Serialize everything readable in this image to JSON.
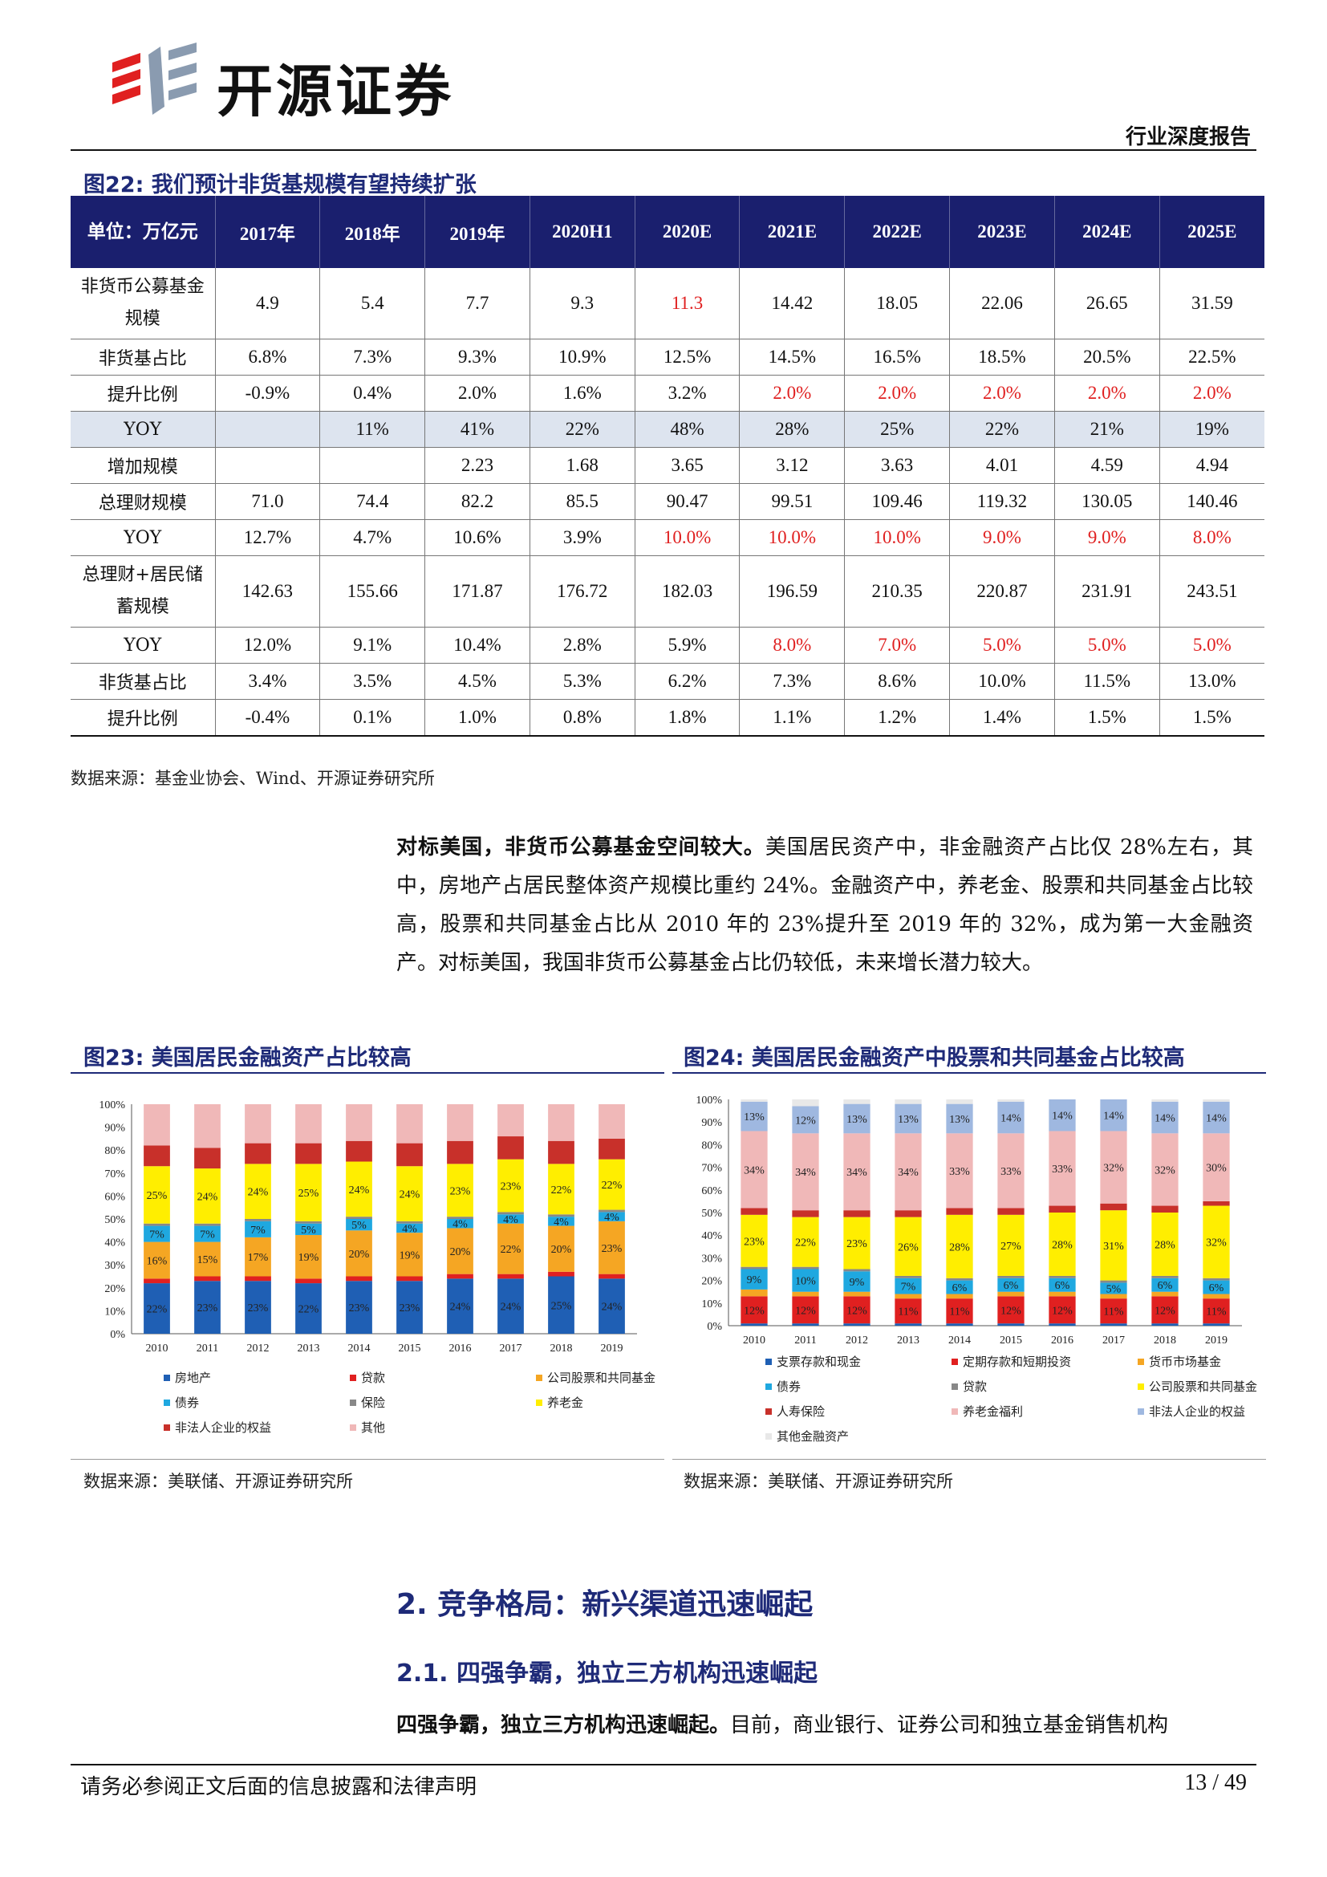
{
  "header": {
    "brand": "开源证券",
    "report_type": "行业深度报告"
  },
  "fig22": {
    "title": "图22:  我们预计非货基规模有望持续扩张",
    "unit_label": "单位：万亿元",
    "columns": [
      "2017年",
      "2018年",
      "2019年",
      "2020H1",
      "2020E",
      "2021E",
      "2022E",
      "2023E",
      "2024E",
      "2025E"
    ],
    "rows": [
      {
        "label": "非货币公募基金规模",
        "values": [
          "4.9",
          "5.4",
          "7.7",
          "9.3",
          "11.3",
          "14.42",
          "18.05",
          "22.06",
          "26.65",
          "31.59"
        ],
        "red": [
          4
        ],
        "tall": true
      },
      {
        "label": "非货基占比",
        "values": [
          "6.8%",
          "7.3%",
          "9.3%",
          "10.9%",
          "12.5%",
          "14.5%",
          "16.5%",
          "18.5%",
          "20.5%",
          "22.5%"
        ],
        "red": []
      },
      {
        "label": "提升比例",
        "values": [
          "-0.9%",
          "0.4%",
          "2.0%",
          "1.6%",
          "3.2%",
          "2.0%",
          "2.0%",
          "2.0%",
          "2.0%",
          "2.0%"
        ],
        "red": [
          5,
          6,
          7,
          8,
          9
        ]
      },
      {
        "label": "YOY",
        "values": [
          "",
          "11%",
          "41%",
          "22%",
          "48%",
          "28%",
          "25%",
          "22%",
          "21%",
          "19%"
        ],
        "red": [],
        "shade": true
      },
      {
        "label": "增加规模",
        "values": [
          "",
          "",
          "2.23",
          "1.68",
          "3.65",
          "3.12",
          "3.63",
          "4.01",
          "4.59",
          "4.94"
        ],
        "red": []
      },
      {
        "label": "总理财规模",
        "values": [
          "71.0",
          "74.4",
          "82.2",
          "85.5",
          "90.47",
          "99.51",
          "109.46",
          "119.32",
          "130.05",
          "140.46"
        ],
        "red": []
      },
      {
        "label": "YOY",
        "values": [
          "12.7%",
          "4.7%",
          "10.6%",
          "3.9%",
          "10.0%",
          "10.0%",
          "10.0%",
          "9.0%",
          "9.0%",
          "8.0%"
        ],
        "red": [
          4,
          5,
          6,
          7,
          8,
          9
        ]
      },
      {
        "label": "总理财+居民储蓄规模",
        "values": [
          "142.63",
          "155.66",
          "171.87",
          "176.72",
          "182.03",
          "196.59",
          "210.35",
          "220.87",
          "231.91",
          "243.51"
        ],
        "red": [],
        "tall": true
      },
      {
        "label": "YOY",
        "values": [
          "12.0%",
          "9.1%",
          "10.4%",
          "2.8%",
          "5.9%",
          "8.0%",
          "7.0%",
          "5.0%",
          "5.0%",
          "5.0%"
        ],
        "red": [
          5,
          6,
          7,
          8,
          9
        ]
      },
      {
        "label": "非货基占比",
        "values": [
          "3.4%",
          "3.5%",
          "4.5%",
          "5.3%",
          "6.2%",
          "7.3%",
          "8.6%",
          "10.0%",
          "11.5%",
          "13.0%"
        ],
        "red": []
      },
      {
        "label": "提升比例",
        "values": [
          "-0.4%",
          "0.1%",
          "1.0%",
          "0.8%",
          "1.8%",
          "1.1%",
          "1.2%",
          "1.4%",
          "1.5%",
          "1.5%"
        ],
        "red": []
      }
    ],
    "source": "数据来源：基金业协会、Wind、开源证券研究所"
  },
  "para1": {
    "bold": "对标美国，非货币公募基金空间较大。",
    "text": "美国居民资产中，非金融资产占比仅 28%左右，其中，房地产占居民整体资产规模比重约 24%。金融资产中，养老金、股票和共同基金占比较高，股票和共同基金占比从 2010 年的 23%提升至 2019 年的 32%，成为第一大金融资产。对标美国，我国非货币公募基金占比仍较低，未来增长潜力较大。"
  },
  "fig23": {
    "title": "图23:  美国居民金融资产占比较高",
    "source": "数据来源：美联储、开源证券研究所"
  },
  "fig24": {
    "title": "图24:  美国居民金融资产中股票和共同基金占比较高",
    "source": "数据来源：美联储、开源证券研究所"
  },
  "chart_data": [
    {
      "type": "bar",
      "stacked": true,
      "title": "美国居民金融资产占比较高",
      "categories": [
        "2010",
        "2011",
        "2012",
        "2013",
        "2014",
        "2015",
        "2016",
        "2017",
        "2018",
        "2019"
      ],
      "ylim": [
        0,
        100
      ],
      "yticks": [
        "0%",
        "10%",
        "20%",
        "30%",
        "40%",
        "50%",
        "60%",
        "70%",
        "80%",
        "90%",
        "100%"
      ],
      "series": [
        {
          "name": "房地产",
          "color": "#1f5fb4",
          "values": [
            22,
            23,
            23,
            22,
            23,
            23,
            24,
            24,
            25,
            24
          ]
        },
        {
          "name": "贷款",
          "color": "#e02020",
          "values": [
            2,
            2,
            2,
            2,
            2,
            2,
            2,
            2,
            2,
            2
          ]
        },
        {
          "name": "公司股票和共同基金",
          "color": "#f5a623",
          "values": [
            16,
            15,
            17,
            19,
            20,
            19,
            20,
            22,
            20,
            23
          ]
        },
        {
          "name": "债券",
          "color": "#1fa8e0",
          "values": [
            7,
            7,
            7,
            5,
            5,
            4,
            4,
            4,
            4,
            4
          ]
        },
        {
          "name": "保险",
          "color": "#888888",
          "values": [
            1,
            1,
            1,
            1,
            1,
            1,
            1,
            1,
            1,
            1
          ]
        },
        {
          "name": "养老金",
          "color": "#ffee00",
          "values": [
            25,
            24,
            24,
            25,
            24,
            24,
            23,
            23,
            22,
            22
          ]
        },
        {
          "name": "非法人企业的权益",
          "color": "#c8302a",
          "values": [
            9,
            9,
            9,
            9,
            9,
            10,
            10,
            10,
            10,
            9
          ]
        },
        {
          "name": "其他",
          "color": "#f0b8b8",
          "values": [
            18,
            19,
            17,
            17,
            16,
            17,
            16,
            14,
            16,
            15
          ]
        }
      ],
      "labels": {
        "房地产": [
          22,
          23,
          23,
          22,
          23,
          23,
          24,
          24,
          25,
          24
        ],
        "公司股票和共同基金": [
          16,
          15,
          17,
          19,
          20,
          19,
          20,
          22,
          20,
          23
        ],
        "债券": [
          7,
          7,
          7,
          5,
          5,
          4,
          4,
          4,
          4,
          4
        ],
        "养老金": [
          25,
          24,
          24,
          25,
          24,
          24,
          23,
          23,
          22,
          22
        ]
      }
    },
    {
      "type": "bar",
      "stacked": true,
      "title": "美国居民金融资产中股票和共同基金占比较高",
      "categories": [
        "2010",
        "2011",
        "2012",
        "2013",
        "2014",
        "2015",
        "2016",
        "2017",
        "2018",
        "2019"
      ],
      "ylim": [
        0,
        100
      ],
      "yticks": [
        "0%",
        "10%",
        "20%",
        "30%",
        "40%",
        "50%",
        "60%",
        "70%",
        "80%",
        "90%",
        "100%"
      ],
      "series": [
        {
          "name": "支票存款和现金",
          "color": "#1f5fb4",
          "values": [
            1,
            1,
            1,
            1,
            1,
            1,
            1,
            1,
            1,
            1
          ]
        },
        {
          "name": "定期存款和短期投资",
          "color": "#e02020",
          "values": [
            12,
            12,
            12,
            11,
            11,
            12,
            12,
            11,
            12,
            11
          ]
        },
        {
          "name": "货币市场基金",
          "color": "#f5a623",
          "values": [
            3,
            2,
            2,
            2,
            2,
            2,
            2,
            2,
            2,
            2
          ]
        },
        {
          "name": "债券",
          "color": "#1fa8e0",
          "values": [
            9,
            10,
            9,
            7,
            6,
            6,
            6,
            5,
            6,
            6
          ]
        },
        {
          "name": "贷款",
          "color": "#888888",
          "values": [
            1,
            1,
            1,
            1,
            1,
            1,
            1,
            1,
            1,
            1
          ]
        },
        {
          "name": "公司股票和共同基金",
          "color": "#ffee00",
          "values": [
            23,
            22,
            23,
            26,
            28,
            27,
            28,
            31,
            28,
            32
          ]
        },
        {
          "name": "人寿保险",
          "color": "#c8302a",
          "values": [
            3,
            3,
            3,
            3,
            3,
            3,
            3,
            3,
            3,
            2
          ]
        },
        {
          "name": "养老金福利",
          "color": "#f0b8b8",
          "values": [
            34,
            34,
            34,
            34,
            33,
            33,
            33,
            32,
            32,
            30
          ]
        },
        {
          "name": "非法人企业的权益",
          "color": "#9fb8e0",
          "values": [
            13,
            12,
            13,
            13,
            13,
            14,
            14,
            14,
            14,
            14
          ]
        },
        {
          "name": "其他金融资产",
          "color": "#e8e8e8",
          "values": [
            1,
            3,
            2,
            2,
            2,
            1,
            0,
            0,
            1,
            1
          ]
        }
      ],
      "labels": {
        "定期存款和短期投资": [
          12,
          12,
          12,
          11,
          11,
          12,
          12,
          11,
          12,
          11
        ],
        "债券": [
          9,
          10,
          9,
          7,
          6,
          6,
          6,
          5,
          6,
          6
        ],
        "公司股票和共同基金": [
          23,
          22,
          23,
          26,
          28,
          27,
          28,
          31,
          28,
          32
        ],
        "养老金福利": [
          34,
          34,
          34,
          34,
          33,
          33,
          33,
          32,
          32,
          30
        ],
        "非法人企业的权益": [
          13,
          12,
          13,
          13,
          13,
          14,
          14,
          14,
          14,
          14
        ]
      }
    }
  ],
  "section2": {
    "title": "2.   竞争格局：新兴渠道迅速崛起"
  },
  "section21": {
    "title": "2.1.   四强争霸，独立三方机构迅速崛起"
  },
  "para2": {
    "bold": "四强争霸，独立三方机构迅速崛起。",
    "text": "目前，商业银行、证券公司和独立基金销售机构"
  },
  "footer": {
    "disclaimer": "请务必参阅正文后面的信息披露和法律声明",
    "page": "13 / 49"
  }
}
